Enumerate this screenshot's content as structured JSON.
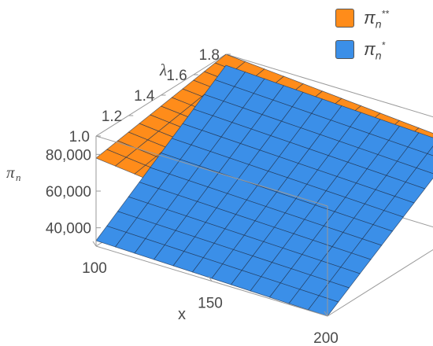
{
  "chart_data": {
    "type": "surface3d",
    "title": "",
    "xlabel": "x",
    "ylabel": "λ",
    "zlabel": "π",
    "zlabel_sub": "n",
    "x_ticks": [
      100,
      150,
      200
    ],
    "y_ticks": [
      1.0,
      1.2,
      1.4,
      1.6,
      1.8
    ],
    "z_ticks": [
      40000,
      60000,
      80000
    ],
    "x_tick_labels": [
      "100",
      "150",
      "200"
    ],
    "y_tick_labels": [
      "1.0",
      "1.2",
      "1.4",
      "1.6",
      "1.8"
    ],
    "z_tick_labels": [
      "40,000",
      "60,000",
      "80,000"
    ],
    "xlim": [
      100,
      200
    ],
    "ylim": [
      1.0,
      1.8
    ],
    "zlim": [
      30000,
      90000
    ],
    "legend_position": "top-right",
    "series": [
      {
        "legend_base": "π",
        "legend_sub": "n",
        "legend_sup": "**",
        "color": "#ff8c1a",
        "corners": [
          {
            "x": 100,
            "y": 1.0,
            "z": 78000
          },
          {
            "x": 200,
            "y": 1.0,
            "z": 64000
          },
          {
            "x": 100,
            "y": 1.8,
            "z": 90000
          },
          {
            "x": 200,
            "y": 1.8,
            "z": 80000
          }
        ]
      },
      {
        "legend_base": "π",
        "legend_sub": "n",
        "legend_sup": "*",
        "color": "#3b8fe8",
        "corners": [
          {
            "x": 100,
            "y": 1.0,
            "z": 33000
          },
          {
            "x": 200,
            "y": 1.0,
            "z": 30000
          },
          {
            "x": 100,
            "y": 1.8,
            "z": 84000
          },
          {
            "x": 200,
            "y": 1.8,
            "z": 78000
          }
        ]
      }
    ]
  }
}
